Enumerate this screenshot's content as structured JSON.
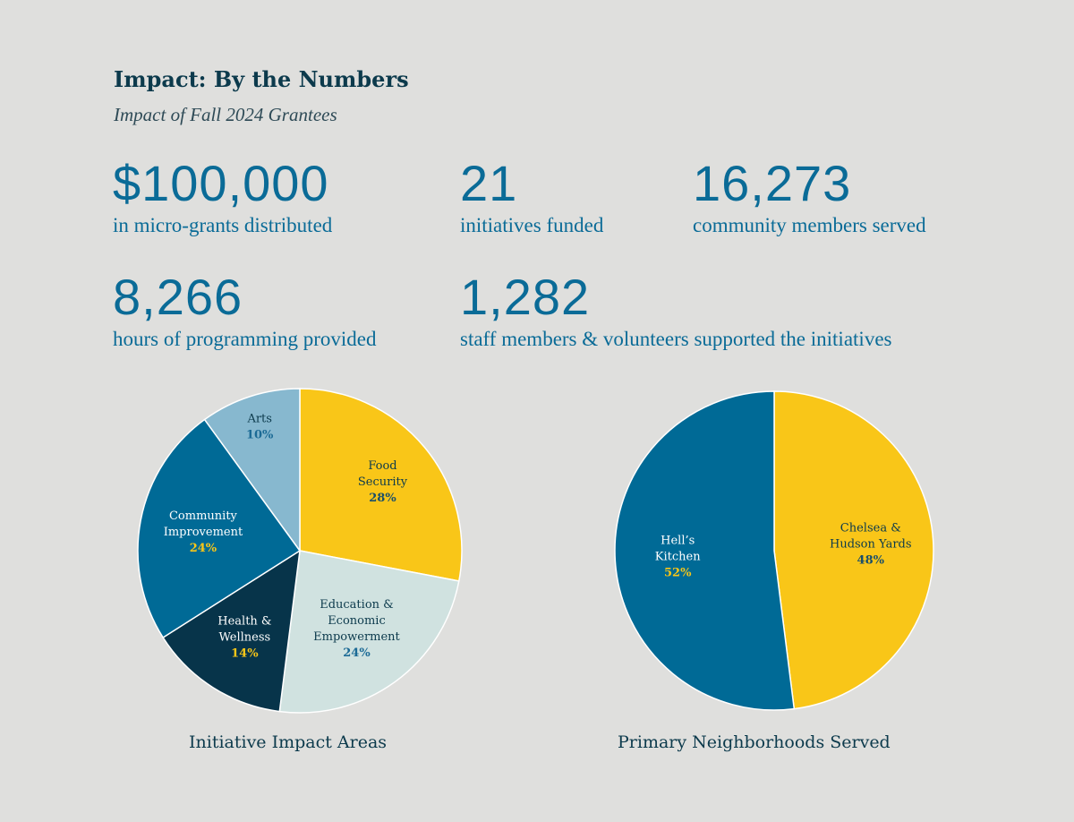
{
  "header": {
    "title": "Impact: By the Numbers",
    "subtitle": "Impact of Fall 2024 Grantees"
  },
  "stats": [
    {
      "number": "$100,000",
      "label": "in micro-grants distributed"
    },
    {
      "number": "21",
      "label": "initiatives funded"
    },
    {
      "number": "16,273",
      "label": "community members served"
    },
    {
      "number": "8,266",
      "label": "hours of programming provided"
    },
    {
      "number": "1,282",
      "label": "staff members & volunteers supported the initiatives"
    }
  ],
  "colors": {
    "background": "#dfdfdd",
    "navy": "#0c3a4c",
    "blue": "#006a96",
    "yellow": "#f9c618",
    "light_blue": "#87b8cf",
    "pale": "#d0e2e0",
    "dark_teal": "#07344a"
  },
  "chart_data": [
    {
      "type": "pie",
      "title": "Initiative Impact Areas",
      "slices": [
        {
          "lines": [
            "Food",
            "Security"
          ],
          "pct_label": "28%",
          "value": 28,
          "color": "#f9c618",
          "text_color": "#0c3a4c",
          "pct_color": "#1a4f6a"
        },
        {
          "lines": [
            "Education &",
            "Economic",
            "Empowerment"
          ],
          "pct_label": "24%",
          "value": 24,
          "color": "#d0e2e0",
          "text_color": "#0c3a4c",
          "pct_color": "#1b6a95"
        },
        {
          "lines": [
            "Health &",
            "Wellness"
          ],
          "pct_label": "14%",
          "value": 14,
          "color": "#07344a",
          "text_color": "#ffffff",
          "pct_color": "#f9c618"
        },
        {
          "lines": [
            "Community",
            "Improvement"
          ],
          "pct_label": "24%",
          "value": 24,
          "color": "#006a96",
          "text_color": "#ffffff",
          "pct_color": "#f9c618"
        },
        {
          "lines": [
            "Arts"
          ],
          "pct_label": "10%",
          "value": 10,
          "color": "#87b8cf",
          "text_color": "#0c3a4c",
          "pct_color": "#1b6a95"
        }
      ]
    },
    {
      "type": "pie",
      "title": "Primary Neighborhoods Served",
      "slices": [
        {
          "lines": [
            "Chelsea &",
            "Hudson Yards"
          ],
          "pct_label": "48%",
          "value": 48,
          "color": "#f9c618",
          "text_color": "#0c3a4c",
          "pct_color": "#1a4f6a"
        },
        {
          "lines": [
            "Hell’s",
            "Kitchen"
          ],
          "pct_label": "52%",
          "value": 52,
          "color": "#006a96",
          "text_color": "#ffffff",
          "pct_color": "#f9c618"
        }
      ]
    }
  ]
}
